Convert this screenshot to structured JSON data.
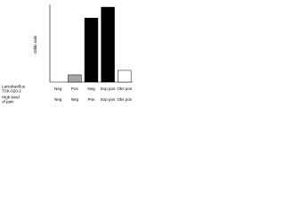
{
  "chart_data": {
    "type": "bar",
    "y_label": "Odds ratio",
    "category_rows": [
      {
        "name": "Lactobacillus TSK-020-2",
        "labels": [
          "Neg",
          "Pos",
          "Neg",
          "Exp pos",
          "Obs pos"
        ]
      },
      {
        "name": "High level of pain",
        "labels": [
          "Neg",
          "Neg",
          "Pos",
          "Exp pos",
          "Obs pos"
        ]
      }
    ],
    "values": [
      1,
      1.37,
      4.3,
      4.86,
      1.6
    ],
    "colors": [
      "#ffffff",
      "#a6a6a6",
      "#000000",
      "#000000",
      "#ffffff"
    ],
    "ylim": [
      1,
      5
    ]
  }
}
